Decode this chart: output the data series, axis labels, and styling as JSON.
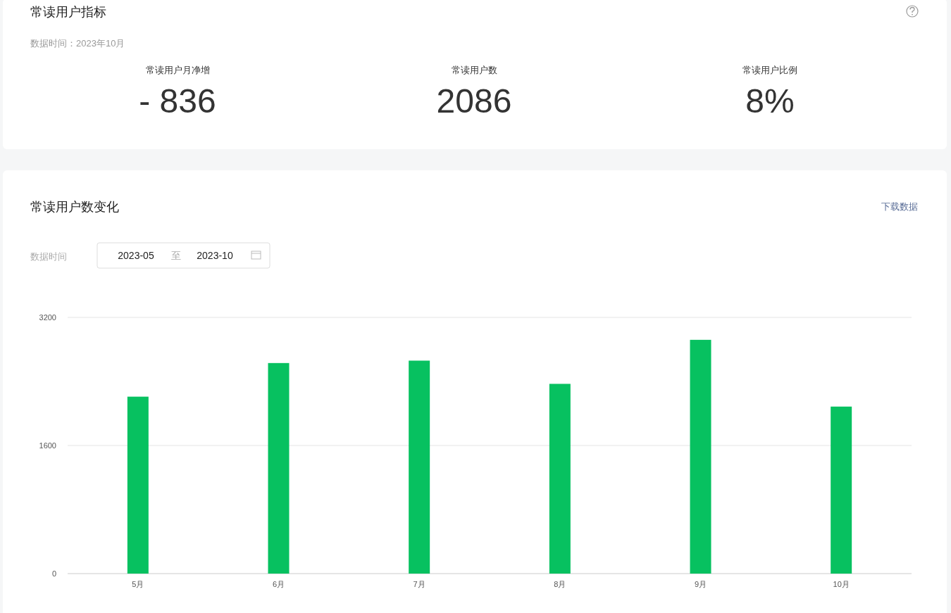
{
  "chart_data": [
    {
      "type": "other",
      "title": "常读用户指标",
      "subtitle": "数据时间：2023年10月",
      "categories": [
        "常读用户月净增",
        "常读用户数",
        "常读用户比例"
      ],
      "value_labels": [
        "- 836",
        "2086",
        "8%"
      ]
    },
    {
      "type": "bar",
      "title": "常读用户数变化",
      "annotations": [
        "下载数据",
        "数据时间",
        "2023-05",
        "至",
        "2023-10"
      ],
      "categories": [
        "5月",
        "6月",
        "7月",
        "8月",
        "9月",
        "10月"
      ],
      "values": [
        2210,
        2630,
        2660,
        2370,
        2920,
        2086
      ],
      "color": "#07c160",
      "ylim": [
        0,
        3200
      ],
      "yticks": [
        0,
        1600,
        3200
      ],
      "grid": "y"
    }
  ]
}
